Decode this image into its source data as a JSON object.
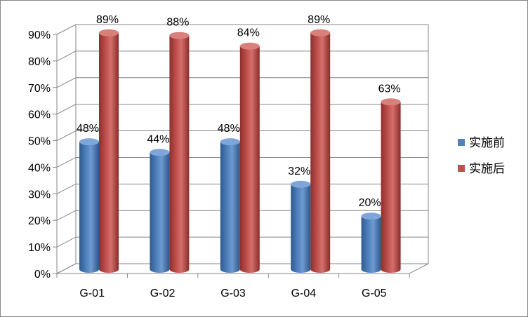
{
  "chart_data": {
    "type": "bar",
    "categories": [
      "G-01",
      "G-02",
      "G-03",
      "G-04",
      "G-05"
    ],
    "series": [
      {
        "name": "实施前",
        "values": [
          48,
          44,
          48,
          32,
          20
        ],
        "color": "#4F81BD"
      },
      {
        "name": "实施后",
        "values": [
          89,
          88,
          84,
          89,
          63
        ],
        "color": "#C0504D"
      }
    ],
    "data_labels": {
      "实施前": [
        "48%",
        "44%",
        "48%",
        "32%",
        "20%"
      ],
      "实施后": [
        "89%",
        "88%",
        "84%",
        "89%",
        "63%"
      ]
    },
    "y_tick_labels": [
      "0%",
      "10%",
      "20%",
      "30%",
      "40%",
      "50%",
      "60%",
      "70%",
      "80%",
      "90%"
    ],
    "ylim": [
      0,
      90
    ],
    "grid": true,
    "legend_position": "right",
    "style": "3d-cylinder"
  }
}
